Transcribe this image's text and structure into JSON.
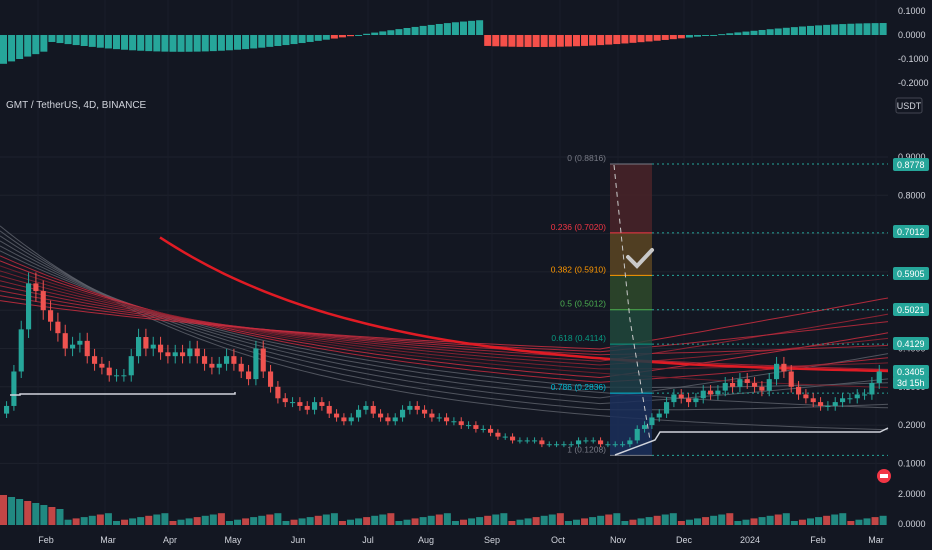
{
  "header": {
    "symbol": "GMT / TetherUS, 4D, BINANCE"
  },
  "scale_button": "USDT",
  "price_axis": {
    "ticks": [
      "0.9000",
      "0.8000",
      "0.7000",
      "0.6000",
      "0.5000",
      "0.4000",
      "0.3000",
      "0.2000",
      "0.1000"
    ]
  },
  "osc_axis": {
    "ticks": [
      "0.1000",
      "0.0000",
      "-0.1000",
      "-0.2000"
    ]
  },
  "vol_axis": {
    "ticks": [
      "2.0000",
      "0.0000"
    ]
  },
  "time_axis": {
    "labels": [
      "Feb",
      "Mar",
      "Apr",
      "May",
      "Jun",
      "Jul",
      "Aug",
      "Sep",
      "Oct",
      "Nov",
      "Dec",
      "2024",
      "Feb",
      "Mar"
    ]
  },
  "price_labels": [
    {
      "text": "0.8778",
      "color": "#26a69a"
    },
    {
      "text": "0.7012",
      "color": "#26a69a"
    },
    {
      "text": "0.5905",
      "color": "#26a69a"
    },
    {
      "text": "0.5021",
      "color": "#26a69a"
    },
    {
      "text": "0.4129",
      "color": "#26a69a"
    },
    {
      "text": "0.3405",
      "color": "#26a69a"
    },
    {
      "text": "3d 15h",
      "color": "#26a69a"
    }
  ],
  "fib_levels": [
    {
      "label": "0 (0.8816)",
      "value": 0.8816,
      "color": "#787b86"
    },
    {
      "label": "0.236 (0.7020)",
      "value": 0.702,
      "color": "#f23645"
    },
    {
      "label": "0.382 (0.5910)",
      "value": 0.591,
      "color": "#ff9800"
    },
    {
      "label": "0.5 (0.5012)",
      "value": 0.5012,
      "color": "#4caf50"
    },
    {
      "label": "0.618 (0.4114)",
      "value": 0.4114,
      "color": "#089981"
    },
    {
      "label": "0.786 (0.2836)",
      "value": 0.2836,
      "color": "#00bcd4"
    },
    {
      "label": "1 (0.1208)",
      "value": 0.1208,
      "color": "#787b86"
    }
  ],
  "chart_data": {
    "type": "candlestick",
    "title": "GMT / TetherUS, 4D, BINANCE",
    "ylim": [
      0.06,
      0.96
    ],
    "x_labels": [
      "Feb",
      "Mar",
      "Apr",
      "May",
      "Jun",
      "Jul",
      "Aug",
      "Sep",
      "Oct",
      "Nov",
      "Dec",
      "2024",
      "Feb",
      "Mar"
    ],
    "close_series": [
      0.25,
      0.34,
      0.45,
      0.57,
      0.55,
      0.5,
      0.47,
      0.44,
      0.4,
      0.41,
      0.42,
      0.38,
      0.36,
      0.35,
      0.33,
      0.33,
      0.33,
      0.38,
      0.43,
      0.4,
      0.41,
      0.39,
      0.38,
      0.39,
      0.38,
      0.4,
      0.38,
      0.36,
      0.35,
      0.36,
      0.38,
      0.36,
      0.34,
      0.32,
      0.4,
      0.34,
      0.3,
      0.27,
      0.26,
      0.26,
      0.25,
      0.24,
      0.26,
      0.25,
      0.23,
      0.22,
      0.21,
      0.22,
      0.24,
      0.25,
      0.23,
      0.22,
      0.21,
      0.22,
      0.24,
      0.25,
      0.24,
      0.23,
      0.22,
      0.22,
      0.21,
      0.21,
      0.2,
      0.2,
      0.19,
      0.19,
      0.18,
      0.17,
      0.17,
      0.16,
      0.16,
      0.16,
      0.16,
      0.15,
      0.15,
      0.15,
      0.15,
      0.15,
      0.16,
      0.16,
      0.16,
      0.15,
      0.15,
      0.15,
      0.15,
      0.16,
      0.19,
      0.2,
      0.22,
      0.23,
      0.26,
      0.28,
      0.27,
      0.26,
      0.27,
      0.29,
      0.28,
      0.29,
      0.31,
      0.3,
      0.32,
      0.31,
      0.3,
      0.29,
      0.32,
      0.36,
      0.34,
      0.3,
      0.28,
      0.27,
      0.26,
      0.25,
      0.25,
      0.26,
      0.27,
      0.27,
      0.28,
      0.28,
      0.31,
      0.34
    ],
    "current_price": 0.3405,
    "countdown": "3d 15h"
  }
}
